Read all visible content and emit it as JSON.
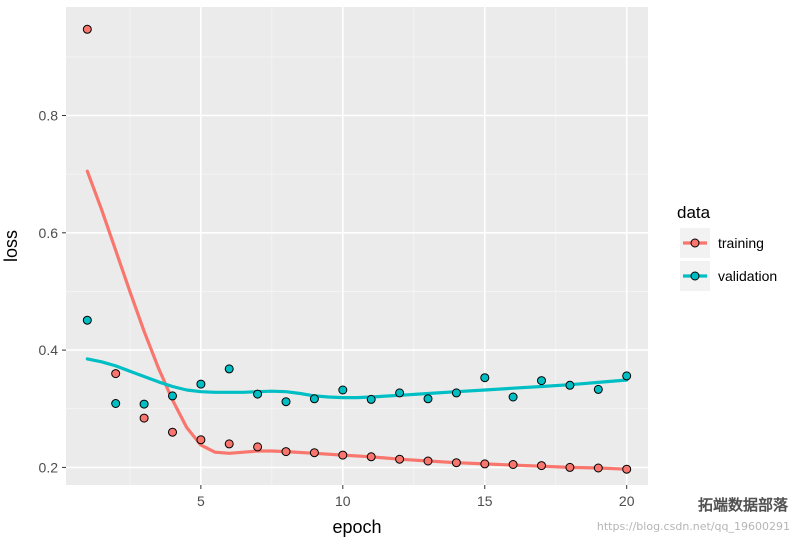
{
  "chart_data": {
    "type": "scatter",
    "xlabel": "epoch",
    "ylabel": "loss",
    "xlim": [
      0.25,
      20.75
    ],
    "ylim": [
      0.17,
      0.985
    ],
    "x_ticks": [
      5,
      10,
      15,
      20
    ],
    "x_tick_labels": [
      "5",
      "10",
      "15",
      "20"
    ],
    "y_ticks": [
      0.2,
      0.4,
      0.6,
      0.8
    ],
    "y_tick_labels": [
      "0.2",
      "0.4",
      "0.6",
      "0.8"
    ],
    "grid": true,
    "legend": {
      "title": "data",
      "position": "right",
      "entries": [
        "training",
        "validation"
      ]
    },
    "series": [
      {
        "name": "training",
        "color": "#F8766D",
        "x": [
          1,
          2,
          3,
          4,
          5,
          6,
          7,
          8,
          9,
          10,
          11,
          12,
          13,
          14,
          15,
          16,
          17,
          18,
          19,
          20
        ],
        "y": [
          0.947,
          0.36,
          0.284,
          0.26,
          0.247,
          0.24,
          0.235,
          0.227,
          0.225,
          0.221,
          0.218,
          0.214,
          0.211,
          0.208,
          0.206,
          0.205,
          0.203,
          0.2,
          0.199,
          0.197
        ],
        "smooth_x": [
          1,
          1.5,
          2,
          2.5,
          3,
          3.5,
          4,
          4.5,
          5,
          5.5,
          6,
          6.5,
          7,
          7.5,
          8,
          9,
          10,
          11,
          12,
          13,
          14,
          15,
          16,
          17,
          18,
          19,
          20
        ],
        "smooth_y": [
          0.705,
          0.64,
          0.57,
          0.5,
          0.432,
          0.37,
          0.315,
          0.268,
          0.238,
          0.226,
          0.224,
          0.226,
          0.228,
          0.228,
          0.227,
          0.224,
          0.221,
          0.218,
          0.214,
          0.211,
          0.208,
          0.206,
          0.204,
          0.202,
          0.2,
          0.199,
          0.197
        ]
      },
      {
        "name": "validation",
        "color": "#00BFC4",
        "x": [
          1,
          2,
          3,
          4,
          5,
          6,
          7,
          8,
          9,
          10,
          11,
          12,
          13,
          14,
          15,
          16,
          17,
          18,
          19,
          20
        ],
        "y": [
          0.451,
          0.309,
          0.308,
          0.322,
          0.342,
          0.368,
          0.325,
          0.312,
          0.317,
          0.332,
          0.316,
          0.327,
          0.317,
          0.327,
          0.353,
          0.32,
          0.348,
          0.34,
          0.333,
          0.356
        ],
        "smooth_x": [
          1,
          1.5,
          2,
          2.5,
          3,
          3.5,
          4,
          4.5,
          5,
          5.5,
          6,
          6.5,
          7,
          7.5,
          8,
          8.5,
          9,
          9.5,
          10,
          10.5,
          11,
          12,
          13,
          14,
          15,
          16,
          17,
          18,
          19,
          20
        ],
        "smooth_y": [
          0.385,
          0.38,
          0.373,
          0.364,
          0.355,
          0.346,
          0.338,
          0.332,
          0.329,
          0.328,
          0.328,
          0.328,
          0.329,
          0.33,
          0.329,
          0.326,
          0.322,
          0.32,
          0.319,
          0.319,
          0.32,
          0.323,
          0.326,
          0.329,
          0.332,
          0.335,
          0.338,
          0.341,
          0.345,
          0.349
        ]
      }
    ]
  },
  "watermark": {
    "brand": "拓端数据部落",
    "url": "https://blog.csdn.net/qq_19600291"
  }
}
